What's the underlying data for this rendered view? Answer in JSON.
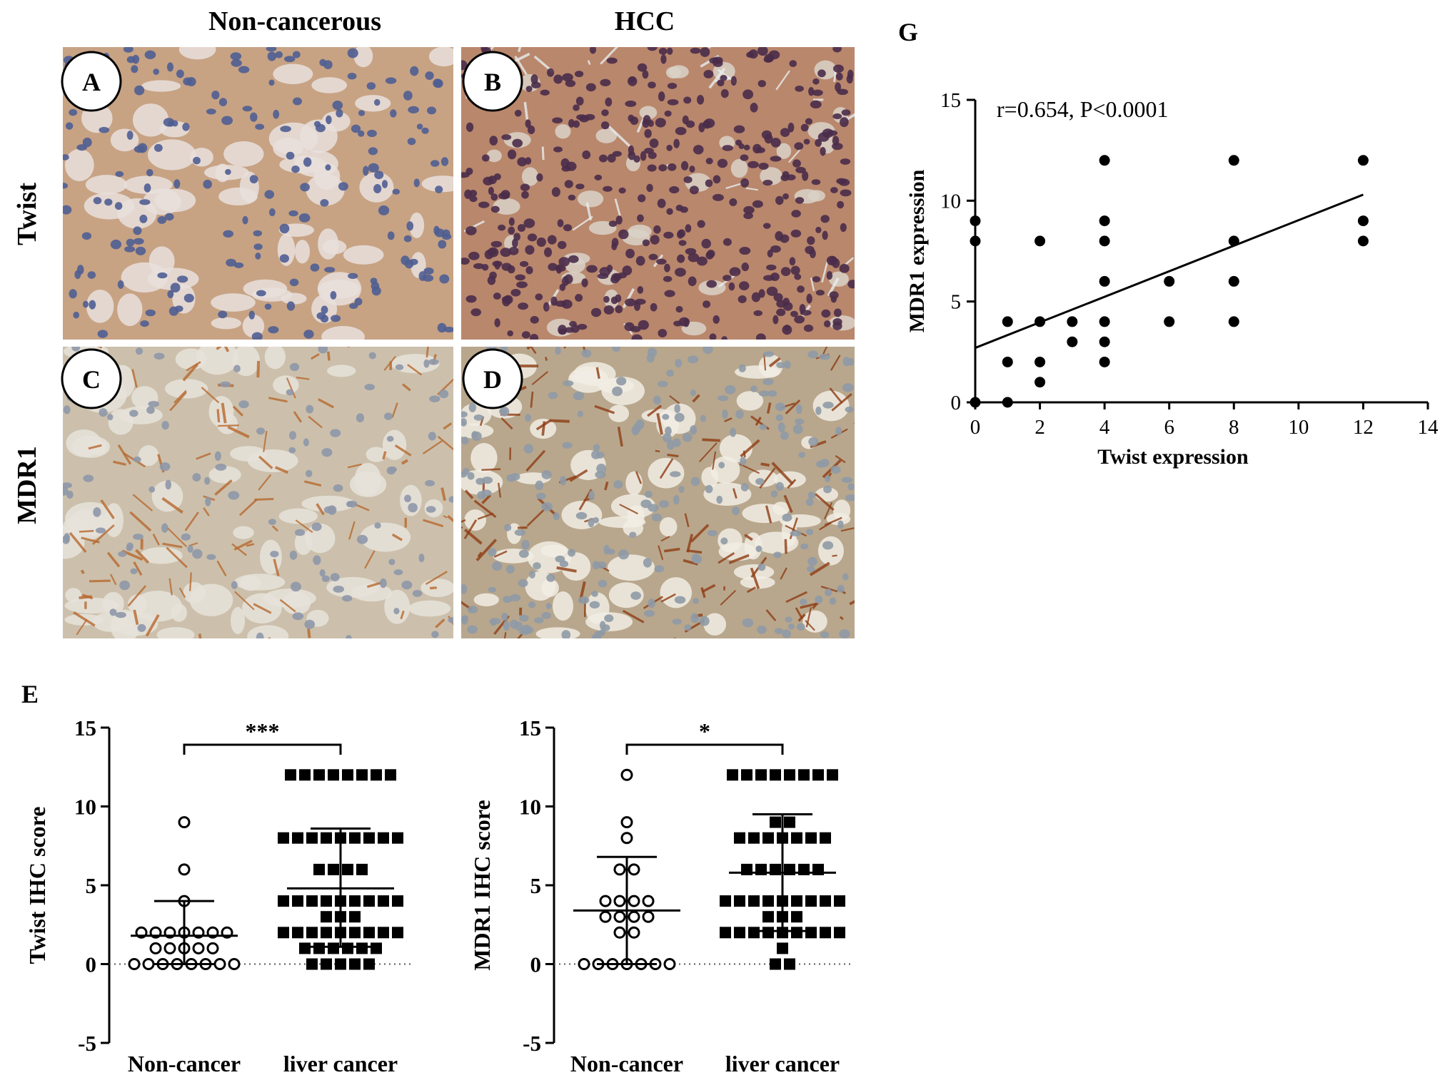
{
  "header": {
    "col_non_cancerous": "Non-cancerous",
    "col_hcc": "HCC",
    "row_twist": "Twist",
    "row_mdr1": "MDR1"
  },
  "micrographs": [
    {
      "label": "A",
      "stain": "twist",
      "tissue": "non-cancerous"
    },
    {
      "label": "B",
      "stain": "twist",
      "tissue": "hcc"
    },
    {
      "label": "C",
      "stain": "mdr1",
      "tissue": "non-cancerous"
    },
    {
      "label": "D",
      "stain": "mdr1",
      "tissue": "hcc"
    }
  ],
  "panel_labels": {
    "E": "E",
    "G": "G"
  },
  "colors": {
    "twist_bg": "#c7a384",
    "twist_light": "#e9e1dd",
    "twist_nucleus": "#4f5e92",
    "hcc_bg": "#b9876c",
    "hcc_nucleus": "#4a2c4a",
    "mdr1_bg": "#ccc0ac",
    "mdr1_light": "#e6e3da",
    "mdr1_membrane": "#b8692f",
    "mdr1d_bg": "#b8a78d",
    "mdr1d_stroma": "#f1ede4",
    "mdr1d_membrane": "#8f3d15"
  },
  "chart_data": [
    {
      "id": "E-twist",
      "type": "scatter",
      "ylabel": "Twist IHC score",
      "categories": [
        "Non-cancer",
        "liver cancer"
      ],
      "ylim": [
        -5,
        15
      ],
      "yticks": [
        "15",
        "10",
        "5",
        "0",
        "-5"
      ],
      "significance": "***",
      "reference_line_y": 0,
      "series": [
        {
          "category": "Non-cancer",
          "marker": "open-circle",
          "values": [
            9,
            6,
            4,
            2,
            2,
            2,
            2,
            2,
            2,
            2,
            1,
            1,
            1,
            1,
            1,
            0,
            0,
            0,
            0,
            0,
            0,
            0,
            0
          ],
          "mean": 1.8,
          "sd_low": 0,
          "sd_high": 4
        },
        {
          "category": "liver cancer",
          "marker": "filled-square",
          "values": [
            12,
            12,
            12,
            12,
            12,
            12,
            12,
            12,
            8,
            8,
            8,
            8,
            8,
            8,
            8,
            8,
            8,
            6,
            6,
            6,
            6,
            4,
            4,
            4,
            4,
            4,
            4,
            4,
            4,
            4,
            3,
            3,
            3,
            2,
            2,
            2,
            2,
            2,
            2,
            2,
            2,
            2,
            1,
            1,
            1,
            1,
            1,
            1,
            0,
            0,
            0,
            0,
            0
          ],
          "mean": 4.8,
          "sd_low": 1.1,
          "sd_high": 8.6
        }
      ]
    },
    {
      "id": "E-mdr1",
      "type": "scatter",
      "ylabel": "MDR1 IHC score",
      "categories": [
        "Non-cancer",
        "liver cancer"
      ],
      "ylim": [
        -5,
        15
      ],
      "yticks": [
        "15",
        "10",
        "5",
        "0",
        "-5"
      ],
      "significance": "*",
      "reference_line_y": 0,
      "series": [
        {
          "category": "Non-cancer",
          "marker": "open-circle",
          "values": [
            12,
            9,
            8,
            6,
            6,
            4,
            4,
            4,
            4,
            3,
            3,
            3,
            3,
            2,
            2,
            0,
            0,
            0,
            0,
            0,
            0,
            0
          ],
          "mean": 3.4,
          "sd_low": 0,
          "sd_high": 6.8
        },
        {
          "category": "liver cancer",
          "marker": "filled-square",
          "values": [
            12,
            12,
            12,
            12,
            12,
            12,
            12,
            12,
            9,
            9,
            8,
            8,
            8,
            8,
            8,
            8,
            8,
            6,
            6,
            6,
            6,
            6,
            6,
            4,
            4,
            4,
            4,
            4,
            4,
            4,
            4,
            4,
            3,
            3,
            3,
            2,
            2,
            2,
            2,
            2,
            2,
            2,
            2,
            2,
            1,
            0,
            0
          ],
          "mean": 5.8,
          "sd_low": 2.1,
          "sd_high": 9.5
        }
      ]
    },
    {
      "id": "G",
      "type": "scatter",
      "xlabel": "Twist expression",
      "ylabel": "MDR1 expression",
      "annotation": "r=0.654, P<0.0001",
      "xlim": [
        0,
        14
      ],
      "ylim": [
        0,
        15
      ],
      "xticks": [
        "0",
        "2",
        "4",
        "6",
        "8",
        "10",
        "12",
        "14"
      ],
      "yticks": [
        "0",
        "5",
        "10",
        "15"
      ],
      "points": [
        [
          0,
          9
        ],
        [
          0,
          8
        ],
        [
          0,
          0
        ],
        [
          1,
          4
        ],
        [
          1,
          2
        ],
        [
          1,
          0
        ],
        [
          2,
          8
        ],
        [
          2,
          4
        ],
        [
          2,
          2
        ],
        [
          2,
          1
        ],
        [
          3,
          4
        ],
        [
          3,
          3
        ],
        [
          4,
          12
        ],
        [
          4,
          9
        ],
        [
          4,
          8
        ],
        [
          4,
          6
        ],
        [
          4,
          4
        ],
        [
          4,
          3
        ],
        [
          4,
          2
        ],
        [
          6,
          6
        ],
        [
          6,
          4
        ],
        [
          8,
          12
        ],
        [
          8,
          8
        ],
        [
          8,
          6
        ],
        [
          8,
          4
        ],
        [
          12,
          12
        ],
        [
          12,
          9
        ],
        [
          12,
          8
        ]
      ],
      "regression": {
        "x": [
          0,
          12
        ],
        "y": [
          2.7,
          10.3
        ]
      }
    }
  ]
}
